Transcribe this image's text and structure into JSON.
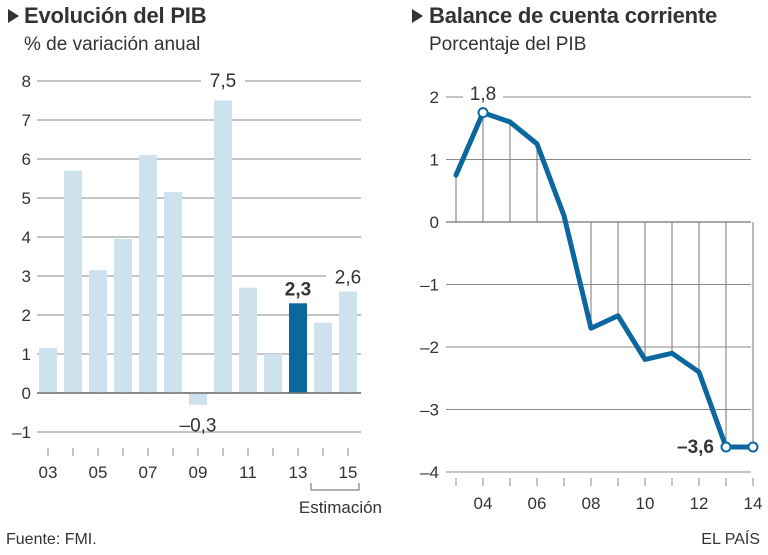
{
  "chart_data": [
    {
      "type": "bar",
      "title": "Evolución del PIB",
      "subtitle": "% de variación anual",
      "xlabel": "",
      "ylabel": "",
      "categories": [
        "03",
        "04",
        "05",
        "06",
        "07",
        "08",
        "09",
        "10",
        "11",
        "12",
        "13",
        "14",
        "15"
      ],
      "years": [
        2003,
        2004,
        2005,
        2006,
        2007,
        2008,
        2009,
        2010,
        2011,
        2012,
        2013,
        2014,
        2015
      ],
      "values": [
        1.15,
        5.7,
        3.15,
        3.95,
        6.1,
        5.15,
        -0.3,
        7.5,
        2.7,
        1.0,
        2.3,
        1.8,
        2.6
      ],
      "highlight_index": 10,
      "x_tick_labels": [
        "03",
        "05",
        "07",
        "09",
        "11",
        "13",
        "15"
      ],
      "x_tick_label_indices": [
        0,
        2,
        4,
        6,
        8,
        10,
        12
      ],
      "y_ticks": [
        8,
        7,
        6,
        5,
        4,
        3,
        2,
        1,
        0,
        -1
      ],
      "y_tick_labels": [
        "8",
        "7",
        "6",
        "5",
        "4",
        "3",
        "2",
        "1",
        "0",
        "–1"
      ],
      "ylim": [
        -1,
        8
      ],
      "grid": true,
      "annotations": [
        {
          "index": 7,
          "text": "7,5",
          "bold": false
        },
        {
          "index": 6,
          "text": "–0,3",
          "bold": false
        },
        {
          "index": 10,
          "text": "2,3",
          "bold": true
        },
        {
          "index": 12,
          "text": "2,6",
          "bold": false
        }
      ],
      "bracket": {
        "from_index": 11,
        "to_index": 12,
        "label": "Estimación"
      },
      "colors": {
        "bar": "#cde2ec",
        "highlight": "#0b679d",
        "grid": "#8a8a8a"
      }
    },
    {
      "type": "line",
      "title": "Balance de cuenta corriente",
      "subtitle": "Porcentaje del PIB",
      "xlabel": "",
      "ylabel": "",
      "x": [
        2003,
        2004,
        2005,
        2006,
        2007,
        2008,
        2009,
        2010,
        2011,
        2012,
        2013,
        2014
      ],
      "values": [
        0.75,
        1.75,
        1.6,
        1.25,
        0.1,
        -1.7,
        -1.5,
        -2.2,
        -2.1,
        -2.4,
        -3.6,
        -3.6
      ],
      "x_tick_labels": [
        "04",
        "06",
        "08",
        "10",
        "12",
        "14"
      ],
      "x_tick_label_indices": [
        1,
        3,
        5,
        7,
        9,
        11
      ],
      "y_ticks": [
        2,
        1,
        0,
        -1,
        -2,
        -3,
        -4
      ],
      "y_tick_labels": [
        "2",
        "1",
        "0",
        "–1",
        "–2",
        "–3",
        "–4"
      ],
      "ylim": [
        -4,
        2
      ],
      "grid": true,
      "marker_indices": [
        1,
        10,
        11
      ],
      "annotations": [
        {
          "index": 1,
          "text": "1,8",
          "bold": false
        },
        {
          "index": 10,
          "text": "–3,6",
          "bold": true
        }
      ],
      "colors": {
        "line": "#0b679d",
        "grid": "#8a8a8a"
      }
    }
  ],
  "footer": {
    "source": "Fuente: FMI.",
    "credit": "EL PAÍS"
  }
}
